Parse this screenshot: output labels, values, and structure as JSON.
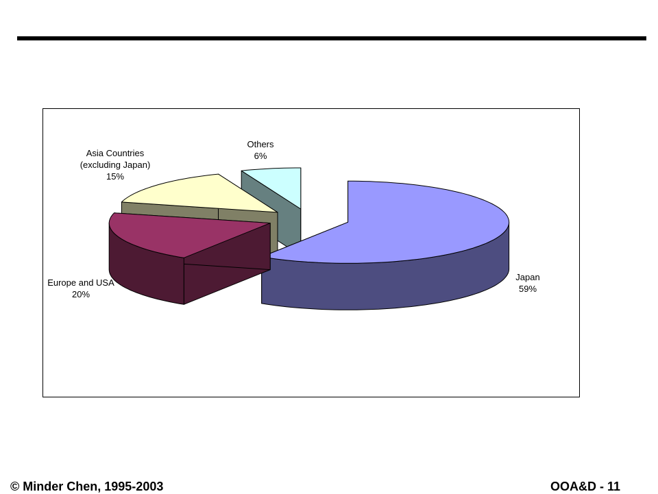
{
  "chart_data": {
    "type": "pie3d",
    "categories": [
      "Japan",
      "Europe and USA",
      "Asia Countries (excluding Japan)",
      "Others"
    ],
    "values": [
      59,
      20,
      15,
      6
    ],
    "value_labels": [
      "59%",
      "20%",
      "15%",
      "6%"
    ],
    "colors": [
      "#9999ff",
      "#993366",
      "#ffffcc",
      "#ccffff"
    ]
  },
  "footer": {
    "left": "© Minder Chen, 1995-2003",
    "right": "OOA&D - 11"
  }
}
